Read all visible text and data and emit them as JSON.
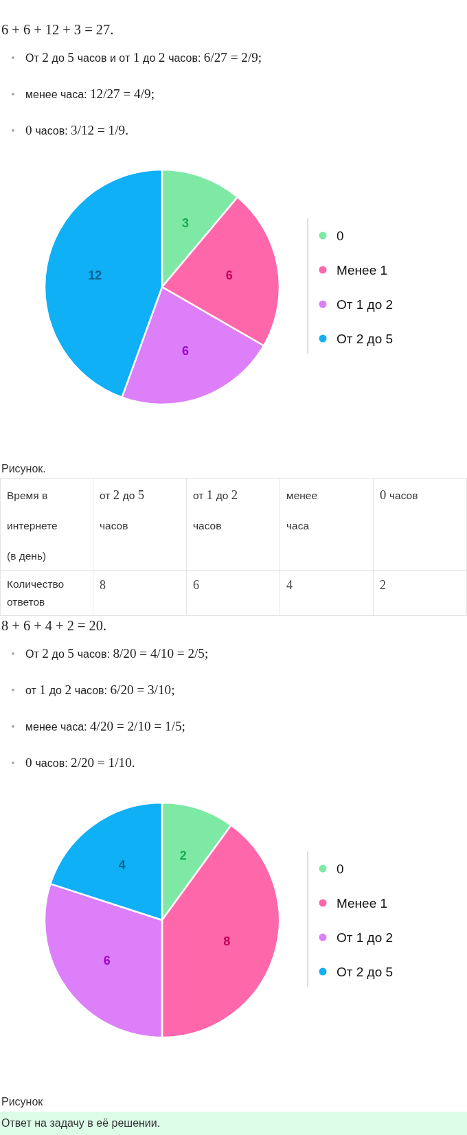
{
  "chart_data": [
    {
      "type": "other",
      "annotations": [
        "6 + 6 + 12 + 3 = 27.",
        "От 2 до 5 часов и от 1 до 2 часов: 6/27 = 2/9;",
        "менее часа: 12/27 = 4/9;",
        "0 часов: 3/12 = 1/9."
      ]
    },
    {
      "type": "pie",
      "categories": [
        "0",
        "Менее 1",
        "От 1 до 2",
        "От 2 до 5"
      ],
      "values": [
        3,
        6,
        6,
        12
      ],
      "colors": [
        "#7ee9a5",
        "#ff67ab",
        "#dc7ff8",
        "#0fb0f6"
      ],
      "data_labels": true,
      "legend": "right",
      "annotations": [
        "Рисунок."
      ]
    },
    {
      "type": "other",
      "xlabel": "Время в интернете (в день)",
      "ylabel": "Количество ответов",
      "categories": [
        "от 2 до 5 часов",
        "от 1 до 2 часов",
        "менее часа",
        "0 часов"
      ],
      "values": [
        8,
        6,
        4,
        2
      ],
      "data_labels": true
    },
    {
      "type": "other",
      "annotations": [
        "8 + 6 + 4 + 2 = 20.",
        "От 2 до 5 часов: 8/20 = 4/10 = 2/5;",
        "от 1 до 2 часов: 6/20 = 3/10;",
        "менее часа: 4/20 = 2/10 = 1/5;",
        "0 часов: 2/20 = 1/10."
      ]
    },
    {
      "type": "pie",
      "categories": [
        "0",
        "Менее 1",
        "От 1 до 2",
        "От 2 до 5"
      ],
      "values": [
        2,
        8,
        6,
        4
      ],
      "colors": [
        "#7ee9a5",
        "#ff67ab",
        "#dc7ff8",
        "#0fb0f6"
      ],
      "data_labels": true,
      "legend": "right",
      "annotations": [
        "Рисунок"
      ]
    },
    {
      "type": "other",
      "annotations": [
        "Ответ на задачу в её решении."
      ]
    }
  ]
}
